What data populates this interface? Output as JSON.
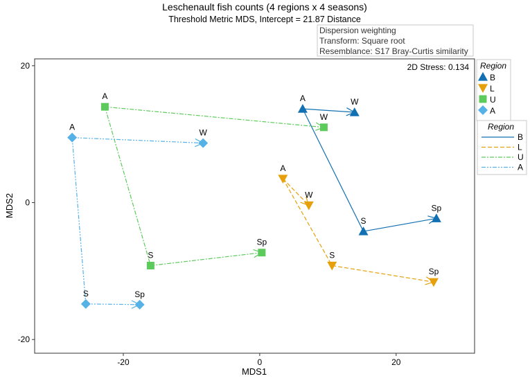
{
  "chart_data": {
    "type": "scatter",
    "title": "Leschenault fish counts (4 regions x 4 seasons)",
    "subtitle": "Threshold Metric MDS, Intercept = 21.87 Distance",
    "info_box": [
      "Dispersion weighting",
      "Transform: Square root",
      "Resemblance: S17 Bray-Curtis similarity"
    ],
    "stress_label": "2D Stress: 0.134",
    "xlabel": "MDS1",
    "ylabel": "MDS2",
    "xlim": [
      -33,
      31.5
    ],
    "ylim": [
      -22,
      21
    ],
    "xticks": [
      -20,
      0,
      20
    ],
    "yticks": [
      -20,
      0,
      20
    ],
    "grid": false,
    "legend_symbols_title": "Region",
    "legend_lines_title": "Region",
    "legend_placement": "right",
    "segments": [
      [
        "A",
        "W"
      ],
      [
        "A",
        "S"
      ],
      [
        "S",
        "Sp"
      ]
    ],
    "series": [
      {
        "name": "B",
        "color": "#1170b2",
        "marker": "triangle-up",
        "dash": "",
        "points": [
          {
            "label": "A",
            "x": 6.3,
            "y": 13.7
          },
          {
            "label": "W",
            "x": 13.9,
            "y": 13.2
          },
          {
            "label": "S",
            "x": 15.2,
            "y": -4.2
          },
          {
            "label": "Sp",
            "x": 25.9,
            "y": -2.3
          }
        ]
      },
      {
        "name": "L",
        "color": "#e6a00c",
        "marker": "triangle-down",
        "dash": "6,3",
        "points": [
          {
            "label": "A",
            "x": 3.4,
            "y": 3.5
          },
          {
            "label": "W",
            "x": 7.2,
            "y": -0.4
          },
          {
            "label": "S",
            "x": 10.6,
            "y": -9.2
          },
          {
            "label": "Sp",
            "x": 25.5,
            "y": -11.6
          }
        ]
      },
      {
        "name": "U",
        "color": "#5ccb5c",
        "marker": "square",
        "dash": "6,2,2,2",
        "points": [
          {
            "label": "A",
            "x": -22.7,
            "y": 14.0
          },
          {
            "label": "W",
            "x": 9.4,
            "y": 11.0
          },
          {
            "label": "S",
            "x": -16.0,
            "y": -9.2
          },
          {
            "label": "Sp",
            "x": 0.3,
            "y": -7.3
          }
        ]
      },
      {
        "name": "A",
        "color": "#56b1e6",
        "marker": "diamond",
        "dash": "6,2,2,2,2,2",
        "points": [
          {
            "label": "A",
            "x": -27.5,
            "y": 9.5
          },
          {
            "label": "W",
            "x": -8.3,
            "y": 8.7
          },
          {
            "label": "S",
            "x": -25.5,
            "y": -14.8
          },
          {
            "label": "Sp",
            "x": -17.6,
            "y": -14.9
          }
        ]
      }
    ]
  }
}
